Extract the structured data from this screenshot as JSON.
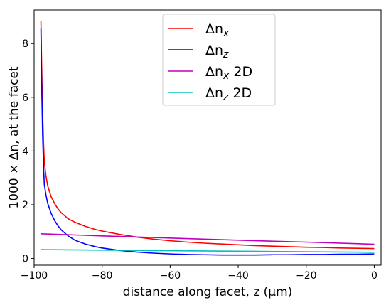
{
  "chart_data": {
    "type": "line",
    "xlabel": "distance along facet, z (μm)",
    "ylabel": "1000 × Δn, at the facet",
    "xlim": [
      -100,
      2
    ],
    "ylim": [
      -0.25,
      9.25
    ],
    "x_ticks": [
      -100,
      -80,
      -60,
      -40,
      -20,
      0
    ],
    "y_ticks": [
      0,
      2,
      4,
      6,
      8
    ],
    "x_tick_labels": [
      "−100",
      "−80",
      "−60",
      "−40",
      "−20",
      "0"
    ],
    "y_tick_labels": [
      "0",
      "2",
      "4",
      "6",
      "8"
    ],
    "grid": false,
    "legend_position": "top-center",
    "series": [
      {
        "name": "Δn_x",
        "label_main": "Δn",
        "label_sub": "x",
        "label_suffix": "",
        "color": "#ff0000",
        "x": [
          -98,
          -97.8,
          -97.5,
          -97.2,
          -97,
          -96.5,
          -96,
          -95,
          -94,
          -93,
          -92,
          -90,
          -88,
          -85,
          -82,
          -80,
          -75,
          -70,
          -65,
          -60,
          -55,
          -50,
          -45,
          -40,
          -35,
          -30,
          -25,
          -20,
          -15,
          -10,
          -5,
          0
        ],
        "y": [
          8.85,
          7.3,
          5.4,
          4.2,
          3.6,
          3.05,
          2.7,
          2.3,
          2.05,
          1.85,
          1.7,
          1.48,
          1.35,
          1.2,
          1.08,
          1.02,
          0.9,
          0.8,
          0.72,
          0.66,
          0.61,
          0.57,
          0.54,
          0.51,
          0.48,
          0.46,
          0.44,
          0.42,
          0.41,
          0.39,
          0.38,
          0.37
        ]
      },
      {
        "name": "Δn_z",
        "label_main": "Δn",
        "label_sub": "z",
        "label_suffix": "",
        "color": "#0000ff",
        "x": [
          -98,
          -97.8,
          -97.5,
          -97.2,
          -97,
          -96.5,
          -96,
          -95,
          -94,
          -93,
          -92,
          -90,
          -88,
          -85,
          -82,
          -80,
          -75,
          -70,
          -65,
          -60,
          -55,
          -50,
          -45,
          -40,
          -35,
          -30,
          -25,
          -20,
          -15,
          -10,
          -5,
          0
        ],
        "y": [
          8.55,
          6.6,
          4.6,
          3.3,
          2.75,
          2.35,
          2.05,
          1.68,
          1.42,
          1.22,
          1.06,
          0.84,
          0.68,
          0.54,
          0.44,
          0.39,
          0.3,
          0.24,
          0.2,
          0.17,
          0.15,
          0.14,
          0.13,
          0.13,
          0.13,
          0.14,
          0.14,
          0.15,
          0.15,
          0.16,
          0.16,
          0.17
        ]
      },
      {
        "name": "Δn_x 2D",
        "label_main": "Δn",
        "label_sub": "x",
        "label_suffix": " 2D",
        "color": "#bf00bf",
        "x": [
          -98,
          -80,
          -60,
          -40,
          -20,
          0
        ],
        "y": [
          0.92,
          0.84,
          0.76,
          0.68,
          0.61,
          0.53
        ]
      },
      {
        "name": "Δn_z 2D",
        "label_main": "Δn",
        "label_sub": "z",
        "label_suffix": " 2D",
        "color": "#00bfbf",
        "x": [
          -98,
          -80,
          -60,
          -40,
          -20,
          0
        ],
        "y": [
          0.33,
          0.31,
          0.29,
          0.27,
          0.25,
          0.23
        ]
      }
    ]
  }
}
